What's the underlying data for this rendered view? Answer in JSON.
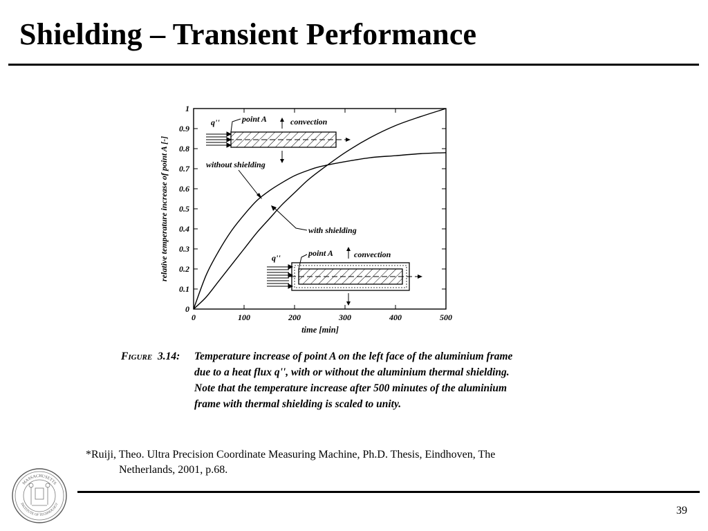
{
  "slide": {
    "title": "Shielding – Transient Performance",
    "page_number": "39"
  },
  "caption": {
    "figure_label": "Figure",
    "figure_number": "3.14:",
    "line1": "Temperature increase of point A on the left face of the aluminium frame",
    "line2": "due to a heat flux  q'', with or without the aluminium thermal shielding.",
    "line3": "Note that the temperature increase after 500 minutes of the aluminium",
    "line4": "frame with thermal shielding is scaled to unity."
  },
  "citation": {
    "line1": "*Ruiji, Theo.  Ultra Precision Coordinate Measuring Machine, Ph.D. Thesis, Eindhoven, The",
    "line2": "Netherlands, 2001, p.68."
  },
  "seal": {
    "top_text": "MASSACHUSETTS",
    "bottom_text": "INSTITUTE OF TECHNOLOGY"
  },
  "chart_data": {
    "type": "line",
    "xlabel": "time  [min]",
    "ylabel": "relative temperature increase of point  A  [-]",
    "xlim": [
      0,
      500
    ],
    "ylim": [
      0,
      1
    ],
    "xticks": [
      0,
      100,
      200,
      300,
      400,
      500
    ],
    "yticks": [
      0,
      0.1,
      0.2,
      0.3,
      0.4,
      0.5,
      0.6,
      0.7,
      0.8,
      0.9,
      1
    ],
    "ytick_labels": [
      "0",
      "0.1",
      "0.2",
      "0.3",
      "0.4",
      "0.5",
      "0.6",
      "0.7",
      "0.8",
      "0.9",
      "1"
    ],
    "grid": false,
    "series": [
      {
        "name": "without shielding",
        "x": [
          0,
          25,
          50,
          75,
          100,
          125,
          150,
          175,
          200,
          225,
          250,
          300,
          350,
          400,
          450,
          500
        ],
        "values": [
          0,
          0.17,
          0.29,
          0.39,
          0.47,
          0.54,
          0.59,
          0.63,
          0.665,
          0.69,
          0.71,
          0.735,
          0.755,
          0.765,
          0.775,
          0.78
        ]
      },
      {
        "name": "with shielding",
        "x": [
          0,
          25,
          50,
          75,
          100,
          125,
          150,
          175,
          200,
          225,
          250,
          300,
          350,
          400,
          450,
          500
        ],
        "values": [
          0,
          0.06,
          0.14,
          0.22,
          0.3,
          0.38,
          0.45,
          0.52,
          0.58,
          0.64,
          0.69,
          0.78,
          0.855,
          0.915,
          0.96,
          1.0
        ]
      }
    ],
    "annotations": {
      "without_shielding": "without shielding",
      "with_shielding": "with shielding",
      "heat_flux": "q''",
      "point_a": "point A",
      "convection": "convection"
    }
  }
}
